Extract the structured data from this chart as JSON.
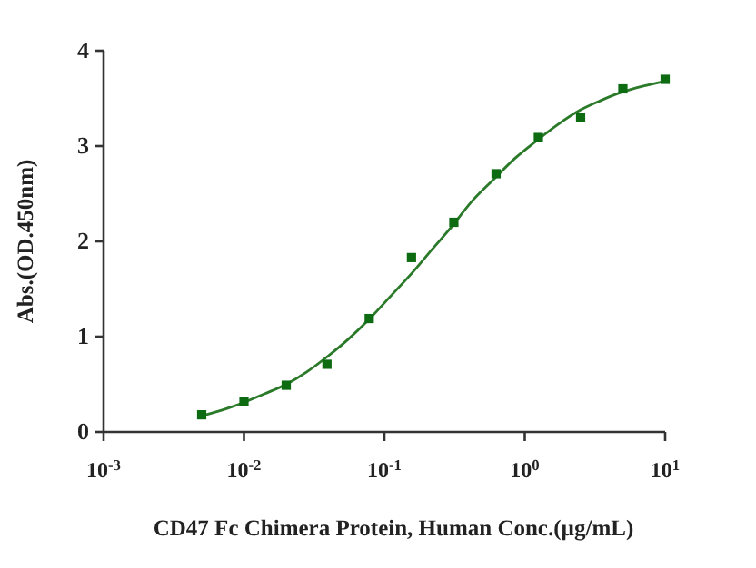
{
  "chart_data": {
    "type": "scatter",
    "xlabel": "CD47 Fc Chimera Protein, Human Conc.(µg/mL)",
    "ylabel": "Abs.(OD.450nm)",
    "log": "x",
    "xlim": [
      0.001,
      10
    ],
    "xticks": [
      {
        "value": 0.001,
        "label": "10$^{-3}$"
      },
      {
        "value": 0.01,
        "label": "10$^{-2}$"
      },
      {
        "value": 0.1,
        "label": "10$^{-1}$"
      },
      {
        "value": 1,
        "label": "10$^{0}$"
      },
      {
        "value": 10,
        "label": "10$^{1}$"
      }
    ],
    "ylim": [
      0,
      4
    ],
    "yticks": [
      0,
      1,
      2,
      3,
      4
    ],
    "grid": false,
    "series": [
      {
        "marker": "square",
        "color": "#0d6b12",
        "x": [
          0.005,
          0.01,
          0.02,
          0.039,
          0.078,
          0.156,
          0.3125,
          0.625,
          1.25,
          2.5,
          5,
          10
        ],
        "values": [
          0.18,
          0.32,
          0.49,
          0.71,
          1.19,
          1.83,
          2.2,
          2.71,
          3.09,
          3.3,
          3.6,
          3.7
        ]
      },
      {
        "type": "line",
        "marker": "none",
        "line_style": "solid",
        "color": "#2a7a2a",
        "x": [
          0.005,
          0.007,
          0.01,
          0.014,
          0.02,
          0.028,
          0.04,
          0.056,
          0.08,
          0.11,
          0.16,
          0.22,
          0.3,
          0.42,
          0.6,
          0.85,
          1.2,
          1.7,
          2.5,
          3.5,
          5,
          7,
          10
        ],
        "values": [
          0.17,
          0.23,
          0.31,
          0.4,
          0.5,
          0.63,
          0.8,
          0.98,
          1.2,
          1.42,
          1.68,
          1.92,
          2.15,
          2.42,
          2.65,
          2.87,
          3.05,
          3.22,
          3.38,
          3.48,
          3.57,
          3.63,
          3.68
        ]
      }
    ]
  }
}
